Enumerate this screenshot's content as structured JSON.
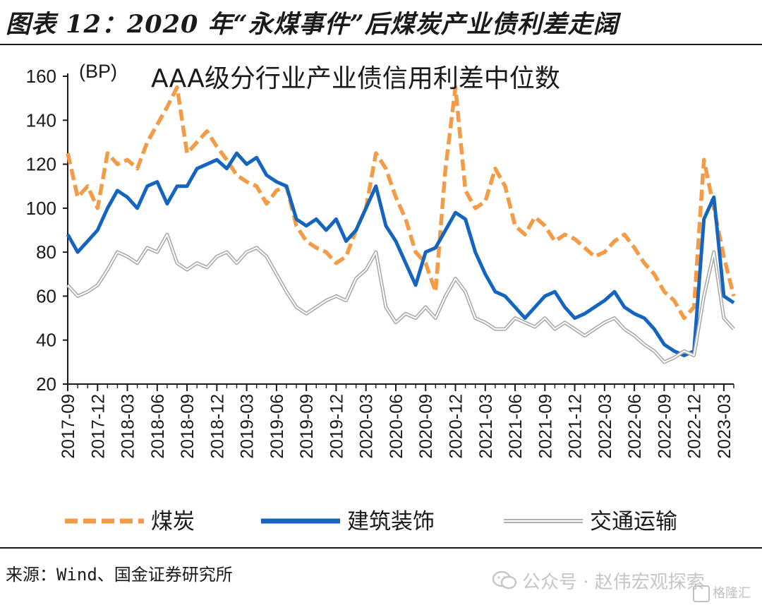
{
  "page": {
    "title": "图表 12：2020 年“永煤事件”后煤炭产业债利差走阔",
    "source": "来源：Wind、国金证券研究所",
    "watermark": "公众号 · 赵伟宏观探索",
    "watermark_logo": "格隆汇"
  },
  "chart_data": {
    "type": "line",
    "title": "AAA级分行业产业债信用利差中位数",
    "unit_label": "(BP)",
    "ylim": [
      20,
      160
    ],
    "yticks": [
      20,
      40,
      60,
      80,
      100,
      120,
      140,
      160
    ],
    "xlim": [
      "2017-09",
      "2023-04"
    ],
    "xticks": [
      "2017-09",
      "2017-12",
      "2018-03",
      "2018-06",
      "2018-09",
      "2018-12",
      "2019-03",
      "2019-06",
      "2019-09",
      "2019-12",
      "2020-03",
      "2020-06",
      "2020-09",
      "2020-12",
      "2021-03",
      "2021-06",
      "2021-09",
      "2021-12",
      "2022-03",
      "2022-06",
      "2022-09",
      "2022-12",
      "2023-03"
    ],
    "grid": false,
    "legend_position": "bottom",
    "series": [
      {
        "name": "煤炭",
        "color": "#F39B46",
        "style": "dashed",
        "x": [
          "2017-09",
          "2017-10",
          "2017-11",
          "2017-12",
          "2018-01",
          "2018-02",
          "2018-03",
          "2018-04",
          "2018-05",
          "2018-06",
          "2018-07",
          "2018-08",
          "2018-09",
          "2018-10",
          "2018-11",
          "2018-12",
          "2019-01",
          "2019-02",
          "2019-03",
          "2019-04",
          "2019-05",
          "2019-06",
          "2019-07",
          "2019-08",
          "2019-09",
          "2019-10",
          "2019-11",
          "2019-12",
          "2020-01",
          "2020-02",
          "2020-03",
          "2020-04",
          "2020-05",
          "2020-06",
          "2020-07",
          "2020-08",
          "2020-09",
          "2020-10",
          "2020-11",
          "2020-12",
          "2021-01",
          "2021-02",
          "2021-03",
          "2021-04",
          "2021-05",
          "2021-06",
          "2021-07",
          "2021-08",
          "2021-09",
          "2021-10",
          "2021-11",
          "2021-12",
          "2022-01",
          "2022-02",
          "2022-03",
          "2022-04",
          "2022-05",
          "2022-06",
          "2022-07",
          "2022-08",
          "2022-09",
          "2022-10",
          "2022-11",
          "2022-12",
          "2023-01",
          "2023-02",
          "2023-03",
          "2023-04"
        ],
        "values": [
          125,
          105,
          110,
          100,
          125,
          120,
          122,
          118,
          130,
          138,
          146,
          155,
          125,
          130,
          135,
          128,
          122,
          115,
          112,
          110,
          102,
          108,
          110,
          92,
          85,
          82,
          80,
          75,
          78,
          90,
          100,
          125,
          118,
          105,
          95,
          80,
          75,
          62,
          118,
          155,
          108,
          100,
          103,
          118,
          110,
          92,
          88,
          96,
          92,
          85,
          88,
          86,
          82,
          78,
          80,
          85,
          88,
          82,
          75,
          70,
          62,
          58,
          50,
          55,
          122,
          100,
          78,
          60
        ]
      },
      {
        "name": "建筑装饰",
        "color": "#1565C0",
        "style": "solid",
        "x": [
          "2017-09",
          "2017-10",
          "2017-11",
          "2017-12",
          "2018-01",
          "2018-02",
          "2018-03",
          "2018-04",
          "2018-05",
          "2018-06",
          "2018-07",
          "2018-08",
          "2018-09",
          "2018-10",
          "2018-11",
          "2018-12",
          "2019-01",
          "2019-02",
          "2019-03",
          "2019-04",
          "2019-05",
          "2019-06",
          "2019-07",
          "2019-08",
          "2019-09",
          "2019-10",
          "2019-11",
          "2019-12",
          "2020-01",
          "2020-02",
          "2020-03",
          "2020-04",
          "2020-05",
          "2020-06",
          "2020-07",
          "2020-08",
          "2020-09",
          "2020-10",
          "2020-11",
          "2020-12",
          "2021-01",
          "2021-02",
          "2021-03",
          "2021-04",
          "2021-05",
          "2021-06",
          "2021-07",
          "2021-08",
          "2021-09",
          "2021-10",
          "2021-11",
          "2021-12",
          "2022-01",
          "2022-02",
          "2022-03",
          "2022-04",
          "2022-05",
          "2022-06",
          "2022-07",
          "2022-08",
          "2022-09",
          "2022-10",
          "2022-11",
          "2022-12",
          "2023-01",
          "2023-02",
          "2023-03",
          "2023-04"
        ],
        "values": [
          88,
          80,
          85,
          90,
          100,
          108,
          105,
          100,
          110,
          112,
          102,
          110,
          110,
          118,
          120,
          122,
          118,
          125,
          120,
          123,
          115,
          112,
          110,
          95,
          92,
          95,
          90,
          95,
          85,
          90,
          100,
          110,
          92,
          85,
          75,
          65,
          80,
          82,
          90,
          98,
          95,
          80,
          70,
          62,
          60,
          55,
          50,
          55,
          60,
          62,
          55,
          50,
          52,
          55,
          58,
          62,
          55,
          52,
          50,
          45,
          38,
          35,
          33,
          35,
          95,
          105,
          60,
          57
        ]
      },
      {
        "name": "交通运输",
        "color": "#A6A6A6",
        "style": "double",
        "x": [
          "2017-09",
          "2017-10",
          "2017-11",
          "2017-12",
          "2018-01",
          "2018-02",
          "2018-03",
          "2018-04",
          "2018-05",
          "2018-06",
          "2018-07",
          "2018-08",
          "2018-09",
          "2018-10",
          "2018-11",
          "2018-12",
          "2019-01",
          "2019-02",
          "2019-03",
          "2019-04",
          "2019-05",
          "2019-06",
          "2019-07",
          "2019-08",
          "2019-09",
          "2019-10",
          "2019-11",
          "2019-12",
          "2020-01",
          "2020-02",
          "2020-03",
          "2020-04",
          "2020-05",
          "2020-06",
          "2020-07",
          "2020-08",
          "2020-09",
          "2020-10",
          "2020-11",
          "2020-12",
          "2021-01",
          "2021-02",
          "2021-03",
          "2021-04",
          "2021-05",
          "2021-06",
          "2021-07",
          "2021-08",
          "2021-09",
          "2021-10",
          "2021-11",
          "2021-12",
          "2022-01",
          "2022-02",
          "2022-03",
          "2022-04",
          "2022-05",
          "2022-06",
          "2022-07",
          "2022-08",
          "2022-09",
          "2022-10",
          "2022-11",
          "2022-12",
          "2023-01",
          "2023-02",
          "2023-03",
          "2023-04"
        ],
        "values": [
          65,
          60,
          62,
          65,
          72,
          80,
          78,
          75,
          82,
          80,
          88,
          75,
          72,
          75,
          73,
          78,
          80,
          75,
          80,
          82,
          78,
          70,
          62,
          55,
          52,
          55,
          58,
          60,
          58,
          68,
          72,
          80,
          55,
          48,
          52,
          50,
          55,
          50,
          60,
          68,
          62,
          50,
          48,
          45,
          45,
          50,
          48,
          46,
          50,
          45,
          48,
          45,
          42,
          45,
          48,
          50,
          45,
          42,
          38,
          35,
          30,
          32,
          35,
          33,
          60,
          80,
          50,
          45
        ]
      }
    ]
  }
}
